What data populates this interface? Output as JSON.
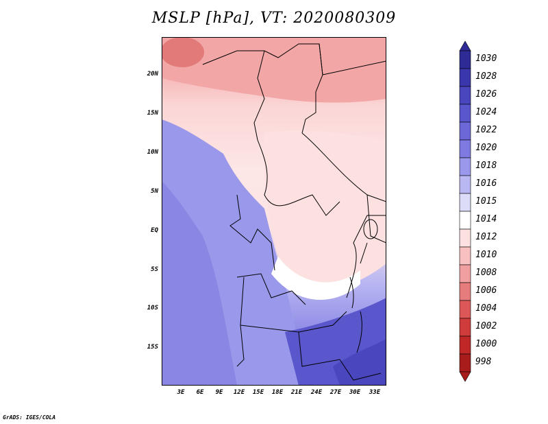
{
  "title": "MSLP [hPa], VT: 2020080309",
  "latitude_labels": [
    "20N",
    "15N",
    "10N",
    "5N",
    "EQ",
    "5S",
    "10S",
    "15S"
  ],
  "longitude_labels": [
    "3E",
    "6E",
    "9E",
    "12E",
    "15E",
    "18E",
    "21E",
    "24E",
    "27E",
    "30E",
    "33E"
  ],
  "colorbar": {
    "levels": [
      "1030",
      "1028",
      "1026",
      "1024",
      "1022",
      "1020",
      "1018",
      "1016",
      "1015",
      "1014",
      "1012",
      "1010",
      "1008",
      "1006",
      "1004",
      "1002",
      "1000",
      "998"
    ],
    "colors": [
      "#2e2a96",
      "#3a36ac",
      "#4a46be",
      "#5a56cc",
      "#6c68d8",
      "#7e7ae2",
      "#9a98ea",
      "#bab8f2",
      "#dcdcf8",
      "#ffffff",
      "#fde0e0",
      "#f8c0c0",
      "#f0a0a0",
      "#e67c7c",
      "#dc5858",
      "#d03c3c",
      "#c02828",
      "#a81c1c"
    ]
  },
  "footer": "GrADS: IGES/COLA"
}
